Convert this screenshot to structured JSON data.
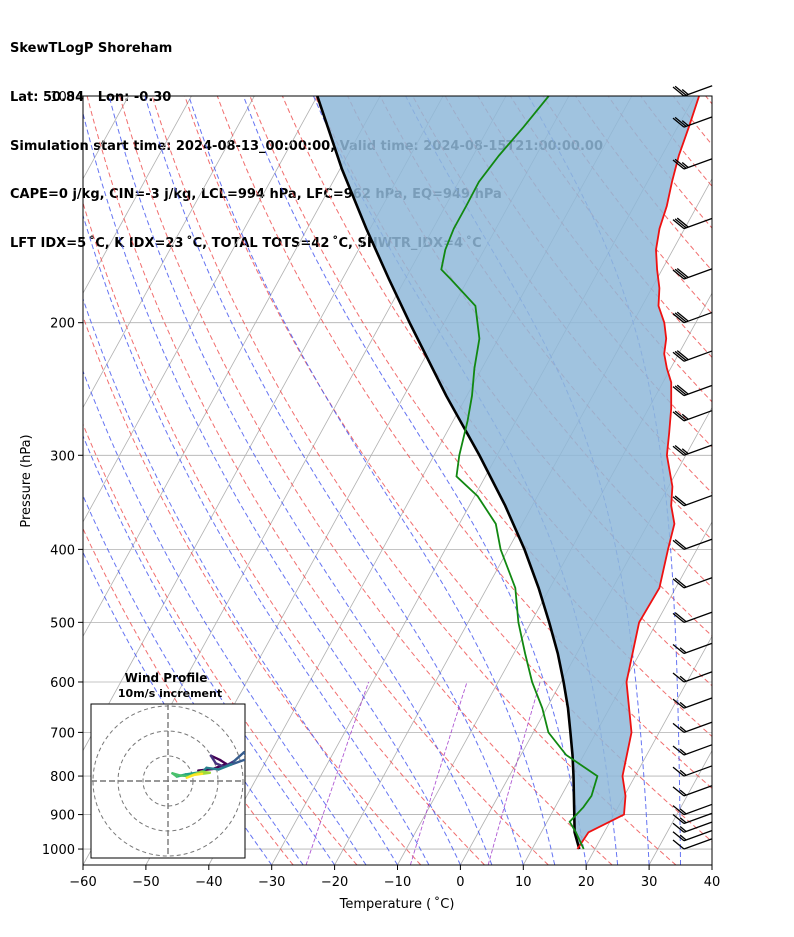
{
  "header": {
    "line1": "SkewTLogP Shoreham",
    "line2": "Lat: 50.84   Lon: -0.30",
    "line3": "Simulation start time: 2024-08-13_00:00:00, Valid time: 2024-08-15T21:00:00.00",
    "line4": "CAPE=0 j/kg, CIN=-3 j/kg, LCL=994 hPa, LFC=962 hPa, EQ=949 hPa",
    "line5": "LFT IDX=5 ˚C, K IDX=23 ˚C, TOTAL TOTS=42 ˚C, SHWTR_IDX=4 ˚C"
  },
  "chart_data": {
    "type": "line",
    "diagram": "skew-T log-P",
    "xlabel": "Temperature ( ˚C)",
    "ylabel": "Pressure (hPa)",
    "xlim": [
      -60,
      40
    ],
    "ylim_hpa": [
      1050,
      100
    ],
    "y_scale": "log",
    "x_ticks": [
      "−60",
      "−50",
      "−40",
      "−30",
      "−20",
      "−10",
      "0",
      "10",
      "20",
      "30",
      "40"
    ],
    "x_tick_values": [
      -60,
      -50,
      -40,
      -30,
      -20,
      -10,
      0,
      10,
      20,
      30,
      40
    ],
    "y_ticks": [
      "100",
      "200",
      "300",
      "400",
      "500",
      "600",
      "700",
      "800",
      "900",
      "1000"
    ],
    "y_tick_values": [
      100,
      200,
      300,
      400,
      500,
      600,
      700,
      800,
      900,
      1000
    ],
    "grid": true,
    "series": [
      {
        "role": "temperature",
        "color": "#ee1111",
        "points": [
          [
            1000,
            17.2
          ],
          [
            950,
            17.5
          ],
          [
            900,
            21.6
          ],
          [
            850,
            20.2
          ],
          [
            800,
            18.0
          ],
          [
            700,
            15.6
          ],
          [
            600,
            10.4
          ],
          [
            500,
            7.2
          ],
          [
            450,
            7.4
          ],
          [
            400,
            5.4
          ],
          [
            370,
            4.2
          ],
          [
            350,
            2.1
          ],
          [
            330,
            0.6
          ],
          [
            300,
            -3.0
          ],
          [
            280,
            -4.6
          ],
          [
            260,
            -6.4
          ],
          [
            240,
            -8.7
          ],
          [
            230,
            -10.6
          ],
          [
            220,
            -12.3
          ],
          [
            210,
            -13.3
          ],
          [
            200,
            -15.0
          ],
          [
            190,
            -17.4
          ],
          [
            180,
            -18.8
          ],
          [
            170,
            -20.8
          ],
          [
            160,
            -22.7
          ],
          [
            150,
            -24.0
          ],
          [
            140,
            -24.8
          ],
          [
            130,
            -26.1
          ],
          [
            120,
            -27.3
          ],
          [
            110,
            -28.2
          ],
          [
            100,
            -29.3
          ]
        ]
      },
      {
        "role": "dewpoint",
        "color": "#118811",
        "points": [
          [
            1000,
            18.2
          ],
          [
            950,
            15.5
          ],
          [
            920,
            13.6
          ],
          [
            880,
            14.5
          ],
          [
            850,
            14.8
          ],
          [
            800,
            14.0
          ],
          [
            750,
            7.2
          ],
          [
            700,
            2.4
          ],
          [
            650,
            -0.7
          ],
          [
            600,
            -4.6
          ],
          [
            550,
            -8.2
          ],
          [
            500,
            -12.0
          ],
          [
            450,
            -15.5
          ],
          [
            400,
            -21.2
          ],
          [
            370,
            -24.2
          ],
          [
            340,
            -29.5
          ],
          [
            320,
            -34.6
          ],
          [
            300,
            -36.0
          ],
          [
            270,
            -37.7
          ],
          [
            250,
            -39.2
          ],
          [
            230,
            -41.2
          ],
          [
            210,
            -43.0
          ],
          [
            190,
            -46.5
          ],
          [
            175,
            -52.8
          ],
          [
            170,
            -55.1
          ],
          [
            160,
            -56.2
          ],
          [
            150,
            -56.7
          ],
          [
            140,
            -56.7
          ],
          [
            130,
            -56.8
          ],
          [
            120,
            -55.9
          ],
          [
            110,
            -54.5
          ],
          [
            100,
            -53.2
          ]
        ]
      },
      {
        "role": "parcel-profile",
        "color": "#000000",
        "points": [
          [
            1000,
            17.5
          ],
          [
            950,
            15.3
          ],
          [
            900,
            13.7
          ],
          [
            850,
            12.0
          ],
          [
            800,
            10.2
          ],
          [
            750,
            8.2
          ],
          [
            700,
            5.9
          ],
          [
            650,
            3.4
          ],
          [
            600,
            0.4
          ],
          [
            550,
            -3.0
          ],
          [
            500,
            -7.1
          ],
          [
            450,
            -11.8
          ],
          [
            400,
            -17.4
          ],
          [
            350,
            -24.3
          ],
          [
            300,
            -32.8
          ],
          [
            250,
            -43.3
          ],
          [
            200,
            -55.5
          ],
          [
            175,
            -62.6
          ],
          [
            150,
            -70.6
          ],
          [
            125,
            -79.7
          ],
          [
            100,
            -90.0
          ]
        ]
      }
    ],
    "shading": {
      "name": "area between parcel and temperature",
      "color": "#8fb9d9"
    },
    "wind_barbs": {
      "levels_hpa": [
        1000,
        975,
        950,
        925,
        900,
        850,
        800,
        750,
        700,
        650,
        600,
        550,
        500,
        450,
        400,
        350,
        300,
        270,
        250,
        225,
        200,
        175,
        150,
        125,
        110,
        100
      ],
      "speeds_kt": [
        12,
        14,
        15,
        14,
        14,
        15,
        15,
        16,
        15,
        16,
        17,
        16,
        18,
        18,
        19,
        20,
        23,
        26,
        28,
        30,
        29,
        28,
        28,
        26,
        25,
        24
      ],
      "direction_deg": 250
    },
    "inset": {
      "title": "Wind Profile",
      "subtitle": "10m/s increment",
      "hodograph_uv": [
        [
          5.5,
          1.9
        ],
        [
          8.2,
          2.2
        ],
        [
          10.6,
          3.1
        ],
        [
          9.5,
          3.8
        ],
        [
          7.8,
          4.6
        ],
        [
          8.7,
          3.2
        ],
        [
          10.2,
          2.6
        ],
        [
          12.0,
          3.6
        ],
        [
          13.8,
          5.2
        ],
        [
          14.6,
          4.1
        ],
        [
          11.5,
          3.0
        ],
        [
          9.2,
          2.1
        ],
        [
          7.0,
          2.4
        ],
        [
          6.4,
          1.8
        ],
        [
          5.3,
          1.5
        ],
        [
          3.2,
          1.2
        ],
        [
          1.6,
          0.8
        ],
        [
          0.8,
          1.4
        ],
        [
          2.2,
          1.0
        ],
        [
          4.0,
          0.9
        ],
        [
          6.1,
          1.7
        ],
        [
          7.6,
          1.5
        ],
        [
          6.2,
          1.3
        ],
        [
          4.7,
          1.1
        ],
        [
          3.4,
          0.6
        ]
      ]
    }
  }
}
